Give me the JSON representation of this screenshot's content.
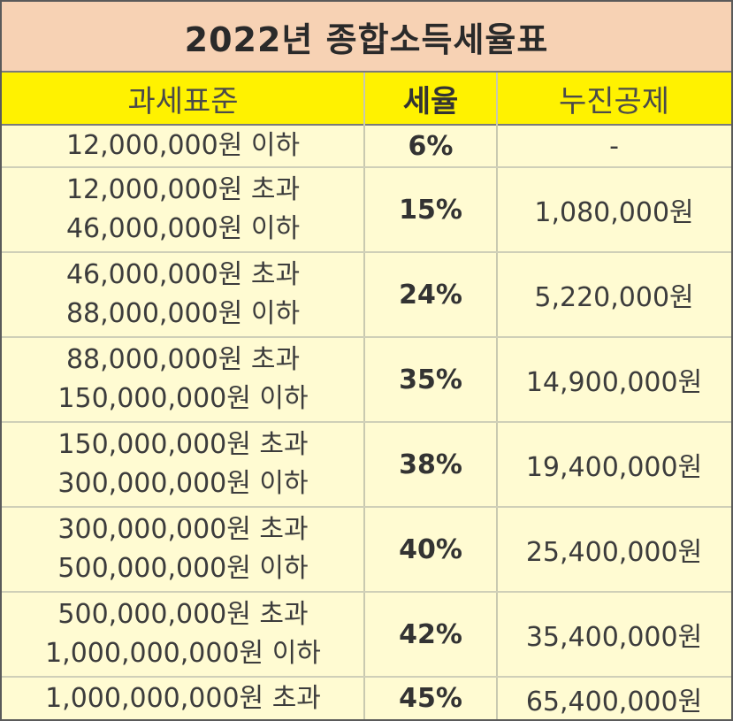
{
  "title": "2022년 종합소득세율표",
  "headers": {
    "base": "과세표준",
    "rate": "세율",
    "deduction": "누진공제"
  },
  "rows": [
    {
      "line1": "12,000,000원 이하",
      "line2": "",
      "rate": "6%",
      "deduction": "-"
    },
    {
      "line1": "12,000,000원 초과",
      "line2": "46,000,000원 이하",
      "rate": "15%",
      "deduction": "1,080,000원"
    },
    {
      "line1": "46,000,000원 초과",
      "line2": "88,000,000원 이하",
      "rate": "24%",
      "deduction": "5,220,000원"
    },
    {
      "line1": "88,000,000원 초과",
      "line2": "150,000,000원 이하",
      "rate": "35%",
      "deduction": "14,900,000원"
    },
    {
      "line1": "150,000,000원 초과",
      "line2": "300,000,000원 이하",
      "rate": "38%",
      "deduction": "19,400,000원"
    },
    {
      "line1": "300,000,000원 초과",
      "line2": "500,000,000원 이하",
      "rate": "40%",
      "deduction": "25,400,000원"
    },
    {
      "line1": "500,000,000원 초과",
      "line2": "1,000,000,000원 이하",
      "rate": "42%",
      "deduction": "35,400,000원"
    },
    {
      "line1": "1,000,000,000원 초과",
      "line2": "",
      "rate": "45%",
      "deduction": "65,400,000원"
    }
  ],
  "colors": {
    "title_bg": "#f7d2b4",
    "header_bg": "#fff200",
    "body_bg": "#fffbd2"
  }
}
